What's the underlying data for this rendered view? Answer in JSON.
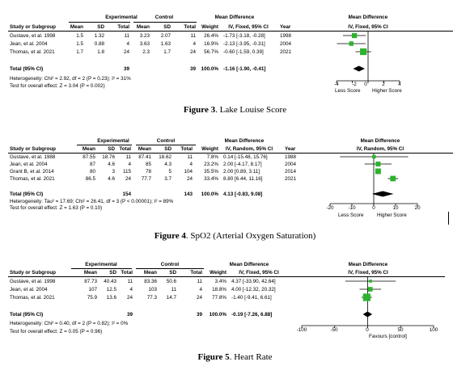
{
  "figures": [
    {
      "caption_label": "Figure 3",
      "caption_text": ". Lake Louise Score",
      "group_headers": {
        "experimental": "Experimental",
        "control": "Control",
        "mean_diff": "Mean Difference",
        "plot": "Mean Difference"
      },
      "col_headers": [
        "Study or Subgroup",
        "Mean",
        "SD",
        "Total",
        "Mean",
        "SD",
        "Total",
        "Weight",
        "IV, Fixed, 95% CI",
        "Year",
        "IV, Fixed, 95% CI"
      ],
      "rows": [
        [
          "Gustave, et al. 1998",
          "1.5",
          "1.32",
          "11",
          "3.23",
          "2.07",
          "11",
          "26.4%",
          "-1.73 [-3.18, -0.28]",
          "1998"
        ],
        [
          "Jean, et al. 2004",
          "1.5",
          "0.88",
          "4",
          "3.63",
          "1.63",
          "4",
          "16.9%",
          "-2.13 [-3.95, -0.31]",
          "2004"
        ],
        [
          "Thomas, et al. 2021",
          "1.7",
          "1.8",
          "24",
          "2.3",
          "1.7",
          "24",
          "56.7%",
          "-0.60 [-1.59, 0.39]",
          "2021"
        ]
      ],
      "total": [
        "Total (95% CI)",
        "39",
        "39",
        "100.0%",
        "-1.16 [-1.90, -0.41]"
      ],
      "heterogeneity": "Heterogeneity: Chi² = 2.92, df = 2 (P = 0.23); I² = 31%",
      "overall": "Test for overall effect: Z = 3.04 (P = 0.002)",
      "axis_ticks": [
        "-4",
        "-2",
        "0",
        "2",
        "4"
      ],
      "axis_left": "Less Score",
      "axis_right": "Higher Score"
    },
    {
      "caption_label": "Figure 4",
      "caption_text": ". SpO2 (Arterial Oxygen Saturation)",
      "group_headers": {
        "experimental": "Experimental",
        "control": "Control",
        "mean_diff": "Mean Difference",
        "plot": "Mean Difference"
      },
      "col_headers": [
        "Study or Subgroup",
        "Mean",
        "SD",
        "Total",
        "Mean",
        "SD",
        "Total",
        "Weight",
        "IV, Random, 95% CI",
        "Year",
        "IV, Random, 95% CI"
      ],
      "rows": [
        [
          "Gustave, et al. 1988",
          "87.55",
          "18.76",
          "11",
          "87.41",
          "18.62",
          "11",
          "7.8%",
          "0.14 [-15.48, 15.76]",
          "1988"
        ],
        [
          "Jean, et al. 2004",
          "87",
          "4.6",
          "4",
          "85",
          "4.3",
          "4",
          "23.2%",
          "2.00 [-4.17, 8.17]",
          "2004"
        ],
        [
          "Grant B, et al. 2014",
          "80",
          "3",
          "115",
          "78",
          "5",
          "104",
          "35.5%",
          "2.00 [0.89, 3.11]",
          "2014"
        ],
        [
          "Thomas, et al. 2021",
          "86.5",
          "4.6",
          "24",
          "77.7",
          "3.7",
          "24",
          "33.4%",
          "8.80 [6.44, 11.16]",
          "2021"
        ]
      ],
      "total": [
        "Total (95% CI)",
        "154",
        "143",
        "100.0%",
        "4.13 [-0.83, 9.08]"
      ],
      "heterogeneity": "Heterogeneity: Tau² = 17.69; Chi² = 26.41, df = 3 (P < 0.00001); I² = 89%",
      "overall": "Test for overall effect: Z = 1.63 (P = 0.10)",
      "axis_ticks": [
        "-20",
        "-10",
        "0",
        "10",
        "20"
      ],
      "axis_left": "Less Score",
      "axis_right": "Higher Score"
    },
    {
      "caption_label": "Figure 5",
      "caption_text": ". Heart Rate",
      "group_headers": {
        "experimental": "Experimental",
        "control": "Control",
        "mean_diff": "Mean Difference",
        "plot": "Mean Difference"
      },
      "col_headers": [
        "Study or Subgroup",
        "Mean",
        "SD",
        "Total",
        "Mean",
        "SD",
        "Total",
        "Weight",
        "IV, Fixed, 95% CI",
        "",
        "IV, Fixed, 95% CI"
      ],
      "rows": [
        [
          "Gustave, et al. 1998",
          "87.73",
          "40.43",
          "11",
          "83.36",
          "50.6",
          "11",
          "3.4%",
          "4.37 [-33.90, 42.64]",
          ""
        ],
        [
          "Jean, et al. 2004",
          "107",
          "12.5",
          "4",
          "103",
          "11",
          "4",
          "18.8%",
          "4.00 [-12.32, 20.32]",
          ""
        ],
        [
          "Thomas, et al. 2021",
          "75.9",
          "13.6",
          "24",
          "77.3",
          "14.7",
          "24",
          "77.8%",
          "-1.40 [-9.41, 6.61]",
          ""
        ]
      ],
      "total": [
        "Total (95% CI)",
        "39",
        "39",
        "100.0%",
        "-0.19 [-7.26, 6.88]"
      ],
      "heterogeneity": "Heterogeneity: Chi² = 0.40, df = 2 (P = 0.82); I² = 0%",
      "overall": "Test for overall effect: Z = 0.05 (P = 0.96)",
      "axis_ticks": [
        "-100",
        "-50",
        "0",
        "50",
        "100"
      ],
      "axis_left": "",
      "axis_right": "Favours [control]"
    }
  ],
  "chart_data": [
    {
      "type": "forest",
      "xlim": [
        -4,
        4
      ],
      "studies": [
        {
          "md": -1.73,
          "lo": -3.18,
          "hi": -0.28,
          "weight": 26.4
        },
        {
          "md": -2.13,
          "lo": -3.95,
          "hi": -0.31,
          "weight": 16.9
        },
        {
          "md": -0.6,
          "lo": -1.59,
          "hi": 0.39,
          "weight": 56.7
        }
      ],
      "pooled": {
        "md": -1.16,
        "lo": -1.9,
        "hi": -0.41
      },
      "marker_color": "#2db32d"
    },
    {
      "type": "forest",
      "xlim": [
        -20,
        20
      ],
      "studies": [
        {
          "md": 0.14,
          "lo": -15.48,
          "hi": 15.76,
          "weight": 7.8
        },
        {
          "md": 2.0,
          "lo": -4.17,
          "hi": 8.17,
          "weight": 23.2
        },
        {
          "md": 2.0,
          "lo": 0.89,
          "hi": 3.11,
          "weight": 35.5
        },
        {
          "md": 8.8,
          "lo": 6.44,
          "hi": 11.16,
          "weight": 33.4
        }
      ],
      "pooled": {
        "md": 4.13,
        "lo": -0.83,
        "hi": 9.08
      },
      "marker_color": "#2db32d"
    },
    {
      "type": "forest",
      "xlim": [
        -100,
        100
      ],
      "studies": [
        {
          "md": 4.37,
          "lo": -33.9,
          "hi": 42.64,
          "weight": 3.4
        },
        {
          "md": 4.0,
          "lo": -12.32,
          "hi": 20.32,
          "weight": 18.8
        },
        {
          "md": -1.4,
          "lo": -9.41,
          "hi": 6.61,
          "weight": 77.8
        }
      ],
      "pooled": {
        "md": -0.19,
        "lo": -7.26,
        "hi": 6.88
      },
      "marker_color": "#2db32d"
    }
  ]
}
